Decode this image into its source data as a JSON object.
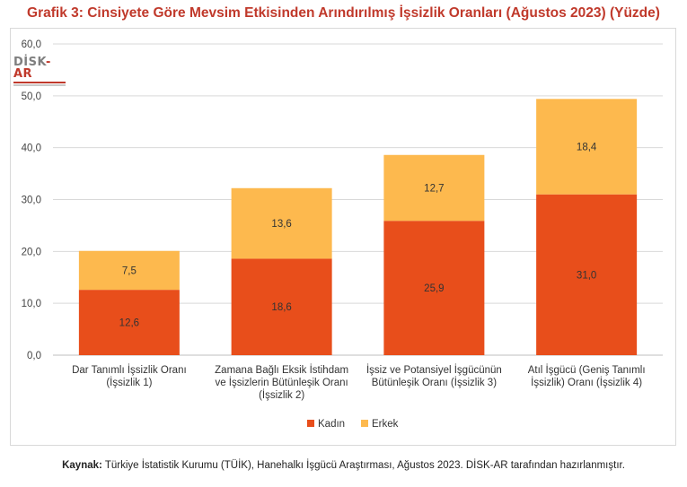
{
  "title": "Grafik 3: Cinsiyete Göre Mevsim Etkisinden Arındırılmış İşsizlik Oranları (Ağustos 2023) (Yüzde)",
  "logo_text": "DİSK-AR",
  "source": {
    "label": "Kaynak:",
    "text": "Türkiye İstatistik Kurumu (TÜİK), Hanehalkı İşgücü Araştırması, Ağustos 2023. DİSK-AR tarafından hazırlanmıştır."
  },
  "chart_data": {
    "type": "bar",
    "stacked": true,
    "categories": [
      [
        "Dar Tanımlı İşsizlik Oranı",
        "(İşsizlik 1)"
      ],
      [
        "Zamana Bağlı Eksik İstihdam",
        "ve İşsizlerin Bütünleşik Oranı",
        "(İşsizlik 2)"
      ],
      [
        "İşsiz ve Potansiyel İşgücünün",
        "Bütünleşik Oranı (İşsizlik 3)"
      ],
      [
        "Atıl İşgücü (Geniş Tanımlı",
        "İşsizlik) Oranı (İşsizlik 4)"
      ]
    ],
    "series": [
      {
        "name": "Kadın",
        "color": "#e84e1b",
        "values": [
          12.6,
          18.6,
          25.9,
          31.0
        ],
        "labels": [
          "12,6",
          "18,6",
          "25,9",
          "31,0"
        ]
      },
      {
        "name": "Erkek",
        "color": "#fdb94e",
        "values": [
          7.5,
          13.6,
          12.7,
          18.4
        ],
        "labels": [
          "7,5",
          "13,6",
          "12,7",
          "18,4"
        ]
      }
    ],
    "ylim": [
      0,
      60
    ],
    "yticks": [
      0,
      10,
      20,
      30,
      40,
      50,
      60
    ],
    "ytick_labels": [
      "0,0",
      "10,0",
      "20,0",
      "30,0",
      "40,0",
      "50,0",
      "60,0"
    ],
    "grid": true,
    "legend_position": "bottom"
  }
}
